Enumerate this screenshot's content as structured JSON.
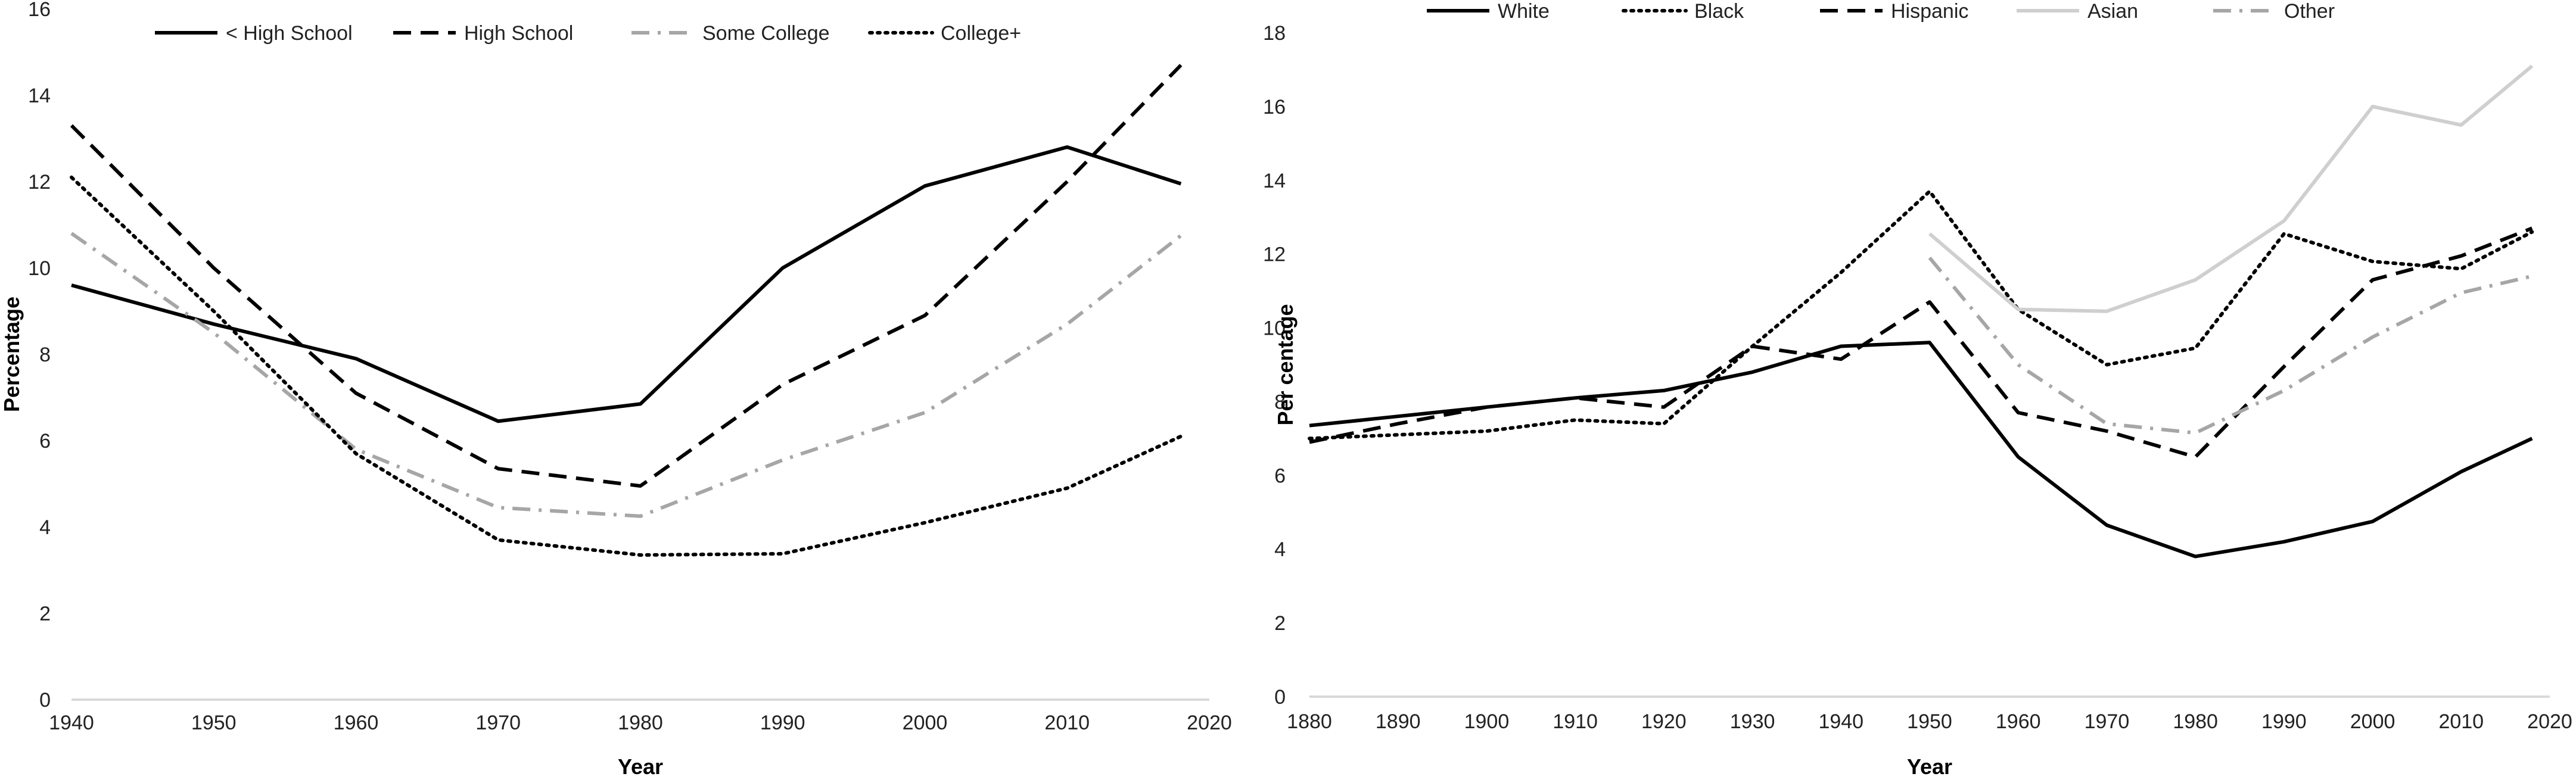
{
  "chart_data": [
    {
      "type": "line",
      "xlabel": "Year",
      "ylabel": "Percentage",
      "xlim": [
        1940,
        2020
      ],
      "ylim": [
        0,
        16
      ],
      "x_ticks": [
        "1940",
        "1950",
        "1960",
        "1970",
        "1980",
        "1990",
        "2000",
        "2010",
        "2020"
      ],
      "y_ticks": [
        "0",
        "2",
        "4",
        "6",
        "8",
        "10",
        "12",
        "14",
        "16"
      ],
      "grid": false,
      "legend": "top",
      "series": [
        {
          "name": "< High School",
          "style": "solid",
          "color": "#000000",
          "x": [
            1940,
            1950,
            1960,
            1970,
            1980,
            1990,
            2000,
            2010,
            2018
          ],
          "y": [
            9.6,
            8.7,
            7.9,
            6.45,
            6.85,
            10.0,
            11.9,
            12.8,
            11.95
          ]
        },
        {
          "name": "High School",
          "style": "dashed",
          "color": "#000000",
          "x": [
            1940,
            1950,
            1960,
            1970,
            1980,
            1990,
            2000,
            2010,
            2018
          ],
          "y": [
            13.3,
            10.0,
            7.1,
            5.35,
            4.95,
            7.3,
            8.9,
            12.0,
            14.7
          ]
        },
        {
          "name": "Some College",
          "style": "dashdot",
          "color": "#a6a6a6",
          "x": [
            1940,
            1950,
            1960,
            1970,
            1980,
            1990,
            2000,
            2010,
            2018
          ],
          "y": [
            10.8,
            8.5,
            5.8,
            4.45,
            4.25,
            5.55,
            6.65,
            8.7,
            10.75
          ]
        },
        {
          "name": "College+",
          "style": "dotted",
          "color": "#000000",
          "x": [
            1940,
            1950,
            1960,
            1970,
            1980,
            1990,
            2000,
            2010,
            2018
          ],
          "y": [
            12.1,
            9.0,
            5.7,
            3.7,
            3.35,
            3.38,
            4.1,
            4.9,
            6.1
          ]
        }
      ]
    },
    {
      "type": "line",
      "xlabel": "Year",
      "ylabel": "Per centage",
      "xlim": [
        1880,
        2020
      ],
      "ylim": [
        0,
        18
      ],
      "x_ticks": [
        "1880",
        "1890",
        "1900",
        "1910",
        "1920",
        "1930",
        "1940",
        "1950",
        "1960",
        "1970",
        "1980",
        "1990",
        "2000",
        "2010",
        "2020"
      ],
      "y_ticks": [
        "0",
        "2",
        "4",
        "6",
        "8",
        "10",
        "12",
        "14",
        "16",
        "18"
      ],
      "grid": false,
      "legend": "top",
      "series": [
        {
          "name": "White",
          "style": "solid",
          "color": "#000000",
          "x": [
            1880,
            1890,
            1900,
            1910,
            1920,
            1930,
            1940,
            1950,
            1960,
            1970,
            1980,
            1990,
            2000,
            2010,
            2018
          ],
          "y": [
            7.35,
            7.6,
            7.85,
            8.1,
            8.3,
            8.8,
            9.5,
            9.6,
            6.5,
            4.65,
            3.8,
            4.2,
            4.75,
            6.1,
            7.0
          ]
        },
        {
          "name": "Black",
          "style": "dotted",
          "color": "#000000",
          "x": [
            1880,
            1890,
            1900,
            1910,
            1920,
            1930,
            1940,
            1950,
            1960,
            1970,
            1980,
            1990,
            2000,
            2010,
            2018
          ],
          "y": [
            7.0,
            7.1,
            7.2,
            7.5,
            7.4,
            9.5,
            11.5,
            13.7,
            10.5,
            9.0,
            9.45,
            12.55,
            11.8,
            11.6,
            12.6
          ]
        },
        {
          "name": "Hispanic",
          "style": "dashed",
          "color": "#000000",
          "x": [
            1880,
            1890,
            1900,
            1910,
            1920,
            1930,
            1940,
            1950,
            1960,
            1970,
            1980,
            1990,
            2000,
            2010,
            2018
          ],
          "y": [
            6.9,
            7.4,
            7.85,
            8.1,
            7.85,
            9.5,
            9.15,
            10.7,
            7.7,
            7.2,
            6.5,
            8.95,
            11.3,
            11.95,
            12.7
          ]
        },
        {
          "name": "Asian",
          "style": "solid",
          "color": "#cfcfcf",
          "x": [
            1950,
            1960,
            1970,
            1980,
            1990,
            2000,
            2010,
            2018
          ],
          "y": [
            12.55,
            10.5,
            10.45,
            11.3,
            12.9,
            16.0,
            15.5,
            17.1
          ]
        },
        {
          "name": "Other",
          "style": "dashdot",
          "color": "#a6a6a6",
          "x": [
            1950,
            1960,
            1970,
            1980,
            1990,
            2000,
            2010,
            2018
          ],
          "y": [
            11.9,
            9.0,
            7.4,
            7.15,
            8.3,
            9.75,
            10.95,
            11.4
          ]
        }
      ]
    }
  ]
}
